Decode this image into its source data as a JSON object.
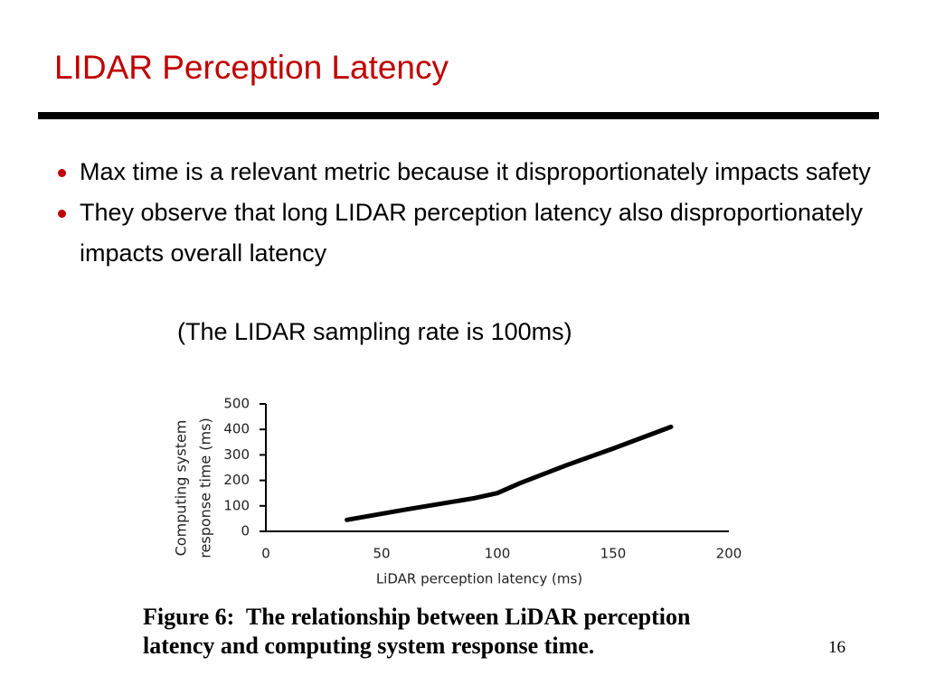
{
  "title": "LIDAR Perception Latency",
  "bullets": [
    "Max time is a relevant metric because it disproportionately impacts safety",
    "They observe that long LIDAR perception latency also disproportionately impacts overall latency"
  ],
  "note": "(The LIDAR sampling rate is 100ms)",
  "chart_data": {
    "type": "line",
    "xlabel": "LiDAR perception latency (ms)",
    "ylabel": [
      "Computing system",
      "response time (ms)"
    ],
    "x": [
      35,
      60,
      90,
      100,
      110,
      130,
      150,
      175
    ],
    "values": [
      45,
      85,
      130,
      150,
      190,
      260,
      325,
      410
    ],
    "color": "#000000",
    "xlim": [
      0,
      200
    ],
    "xticks": [
      0,
      50,
      100,
      150,
      200
    ],
    "ylim": [
      0,
      500
    ],
    "yticks": [
      0,
      100,
      200,
      300,
      400,
      500
    ]
  },
  "caption": [
    "Figure 6:  The relationship between LiDAR perception",
    "latency and computing system response time."
  ],
  "page_number": "16"
}
